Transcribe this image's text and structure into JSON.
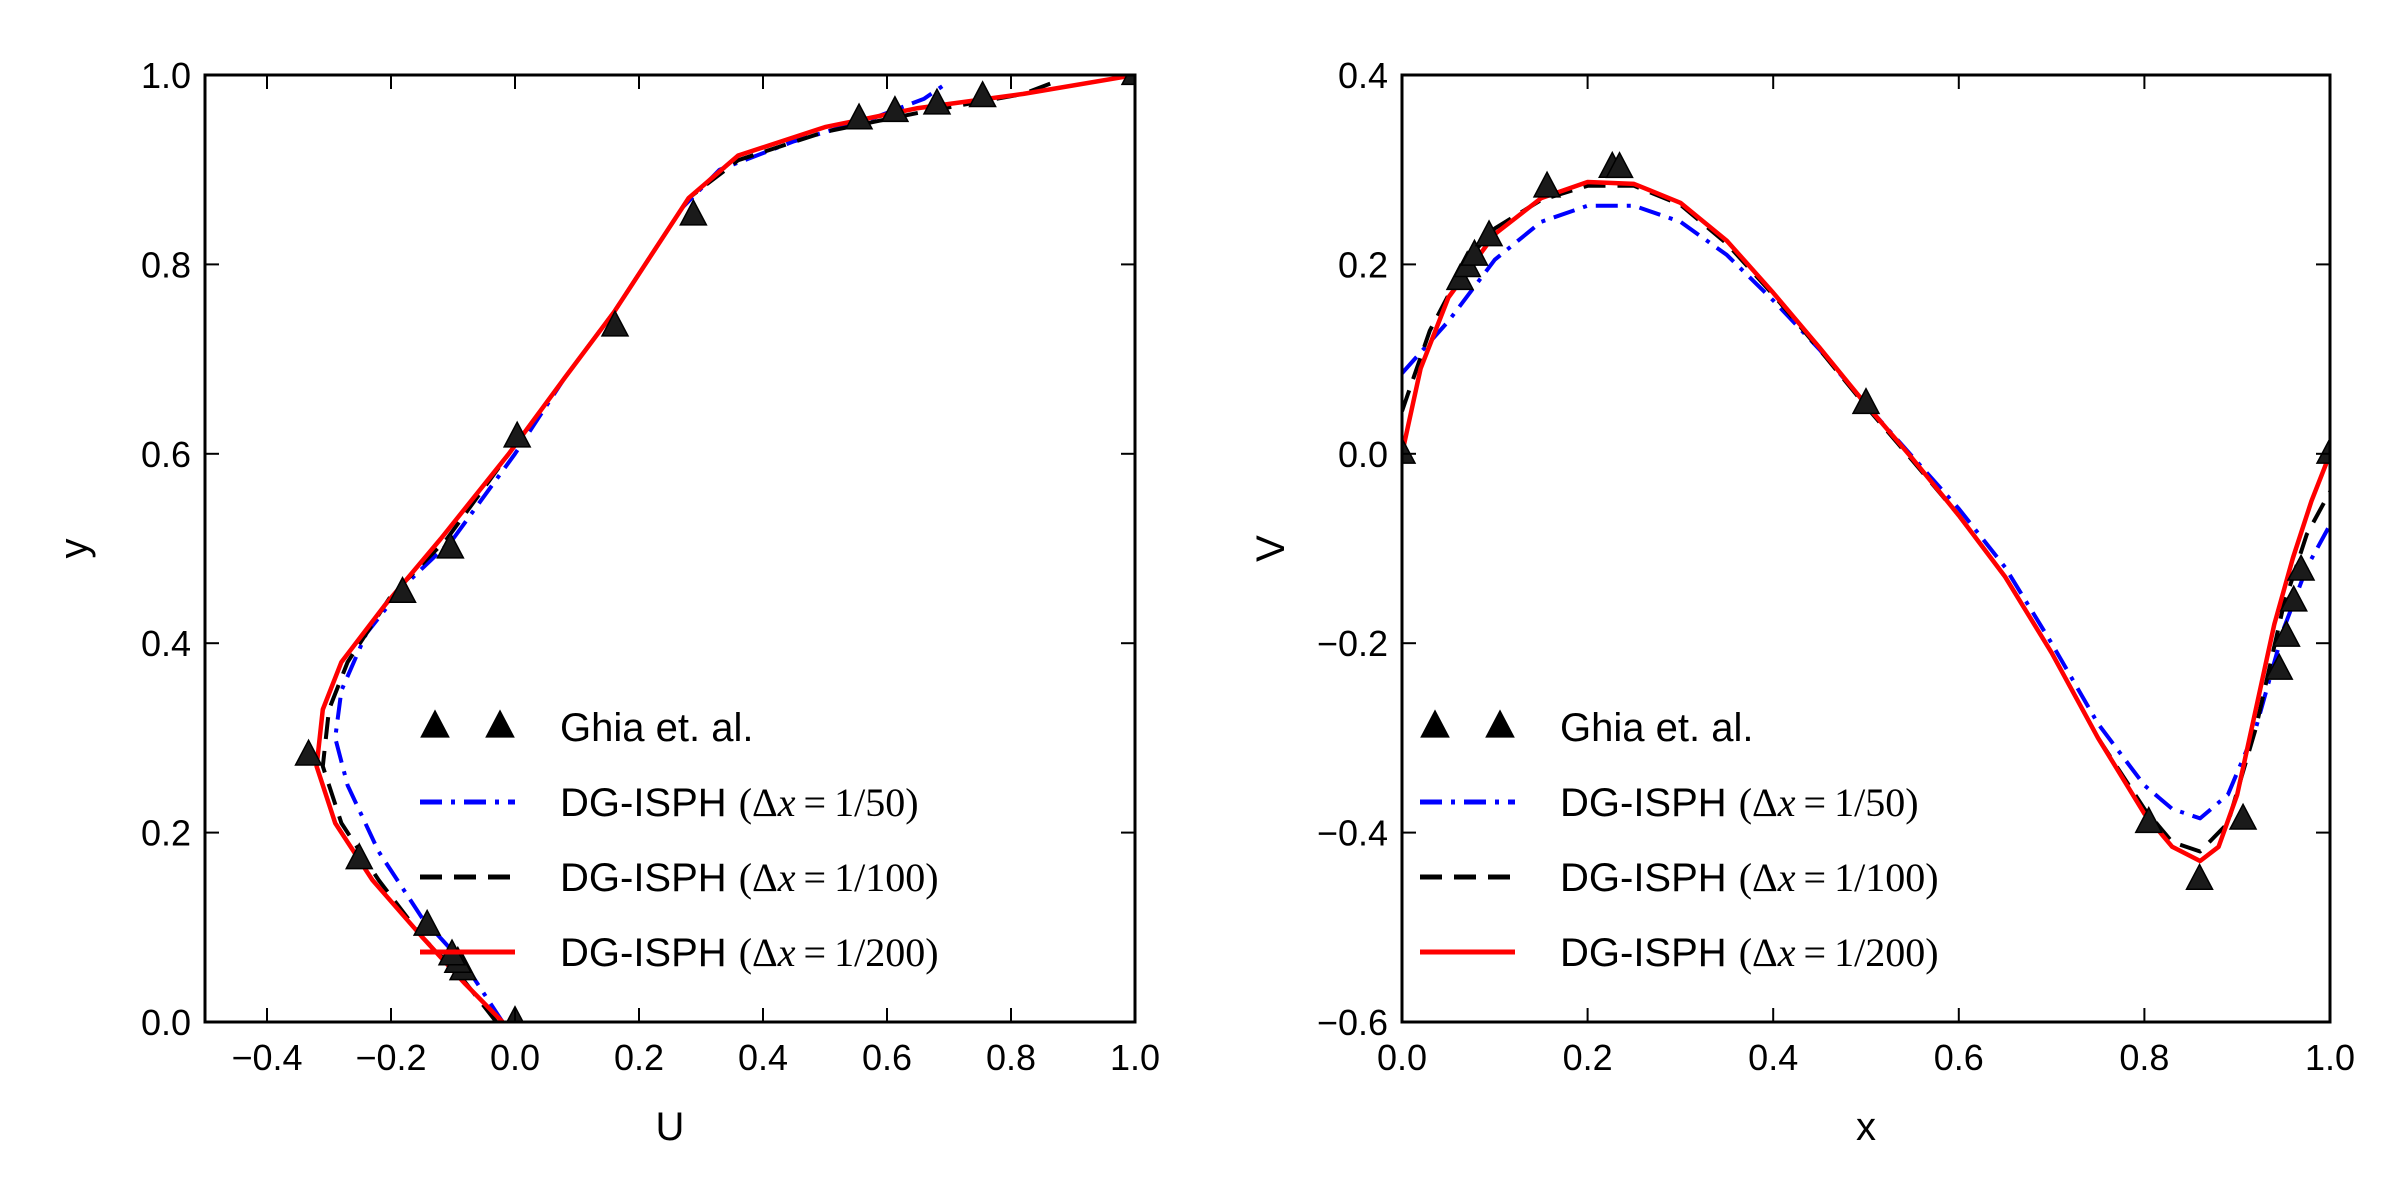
{
  "chart_data": [
    {
      "type": "line",
      "xlabel": "U",
      "ylabel": "y",
      "xlim": [
        -0.5,
        1.0
      ],
      "ylim": [
        0.0,
        1.0
      ],
      "xticks": [
        -0.4,
        -0.2,
        0.0,
        0.2,
        0.4,
        0.6,
        0.8,
        1.0
      ],
      "yticks": [
        0.0,
        0.2,
        0.4,
        0.6,
        0.8,
        1.0
      ],
      "xtick_labels": [
        "−0.4",
        "−0.2",
        "0.0",
        "0.2",
        "0.4",
        "0.6",
        "0.8",
        "1.0"
      ],
      "ytick_labels": [
        "0.0",
        "0.2",
        "0.4",
        "0.6",
        "0.8",
        "1.0"
      ],
      "grid": false,
      "legend_position": "lower-right",
      "series": [
        {
          "name": "Ghia et. al.",
          "style": "markers",
          "marker": "triangle",
          "color": "#000000",
          "points": [
            [
              0.0,
              0.0
            ],
            [
              -0.0838,
              0.0547
            ],
            [
              -0.0922,
              0.0625
            ],
            [
              -0.1016,
              0.0703
            ],
            [
              -0.1417,
              0.1016
            ],
            [
              -0.2512,
              0.1719
            ],
            [
              -0.333,
              0.2813
            ],
            [
              -0.1814,
              0.4531
            ],
            [
              -0.1042,
              0.5
            ],
            [
              0.0035,
              0.6172
            ],
            [
              0.1613,
              0.7344
            ],
            [
              0.2877,
              0.8516
            ],
            [
              0.5549,
              0.9531
            ],
            [
              0.6128,
              0.9609
            ],
            [
              0.6806,
              0.9688
            ],
            [
              0.7542,
              0.9766
            ],
            [
              1.0,
              1.0
            ]
          ]
        },
        {
          "name": "DG-ISPH",
          "dx_label": "1/50",
          "style": "dash-dot",
          "color": "#0000ff",
          "points": [
            [
              -0.02,
              0.0
            ],
            [
              -0.08,
              0.06
            ],
            [
              -0.15,
              0.11
            ],
            [
              -0.22,
              0.18
            ],
            [
              -0.27,
              0.25
            ],
            [
              -0.29,
              0.3
            ],
            [
              -0.28,
              0.35
            ],
            [
              -0.24,
              0.41
            ],
            [
              -0.18,
              0.46
            ],
            [
              -0.1,
              0.51
            ],
            [
              0.0,
              0.6
            ],
            [
              0.08,
              0.68
            ],
            [
              0.16,
              0.75
            ],
            [
              0.22,
              0.81
            ],
            [
              0.27,
              0.86
            ],
            [
              0.33,
              0.9
            ],
            [
              0.45,
              0.93
            ],
            [
              0.58,
              0.955
            ],
            [
              0.66,
              0.975
            ],
            [
              0.7,
              0.993
            ]
          ]
        },
        {
          "name": "DG-ISPH",
          "dx_label": "1/100",
          "style": "dashed",
          "color": "#000000",
          "points": [
            [
              -0.03,
              0.0
            ],
            [
              -0.09,
              0.05
            ],
            [
              -0.15,
              0.09
            ],
            [
              -0.22,
              0.15
            ],
            [
              -0.28,
              0.21
            ],
            [
              -0.31,
              0.27
            ],
            [
              -0.3,
              0.33
            ],
            [
              -0.27,
              0.38
            ],
            [
              -0.2,
              0.45
            ],
            [
              -0.11,
              0.51
            ],
            [
              -0.01,
              0.6
            ],
            [
              0.08,
              0.68
            ],
            [
              0.16,
              0.75
            ],
            [
              0.22,
              0.81
            ],
            [
              0.28,
              0.87
            ],
            [
              0.36,
              0.91
            ],
            [
              0.5,
              0.94
            ],
            [
              0.65,
              0.96
            ],
            [
              0.82,
              0.98
            ],
            [
              0.88,
              0.995
            ]
          ]
        },
        {
          "name": "DG-ISPH",
          "dx_label": "1/200",
          "style": "solid",
          "color": "#ff0000",
          "points": [
            [
              -0.02,
              0.0
            ],
            [
              -0.08,
              0.04
            ],
            [
              -0.15,
              0.09
            ],
            [
              -0.23,
              0.15
            ],
            [
              -0.29,
              0.21
            ],
            [
              -0.32,
              0.27
            ],
            [
              -0.31,
              0.33
            ],
            [
              -0.28,
              0.38
            ],
            [
              -0.21,
              0.44
            ],
            [
              -0.12,
              0.51
            ],
            [
              -0.01,
              0.6
            ],
            [
              0.08,
              0.68
            ],
            [
              0.16,
              0.75
            ],
            [
              0.22,
              0.81
            ],
            [
              0.28,
              0.87
            ],
            [
              0.36,
              0.915
            ],
            [
              0.5,
              0.945
            ],
            [
              0.65,
              0.965
            ],
            [
              0.82,
              0.98
            ],
            [
              1.0,
              1.0
            ]
          ]
        }
      ]
    },
    {
      "type": "line",
      "xlabel": "x",
      "ylabel": "V",
      "xlim": [
        0.0,
        1.0
      ],
      "ylim": [
        -0.6,
        0.4
      ],
      "xticks": [
        0.0,
        0.2,
        0.4,
        0.6,
        0.8,
        1.0
      ],
      "yticks": [
        -0.6,
        -0.4,
        -0.2,
        0.0,
        0.2,
        0.4
      ],
      "xtick_labels": [
        "0.0",
        "0.2",
        "0.4",
        "0.6",
        "0.8",
        "1.0"
      ],
      "ytick_labels": [
        "−0.6",
        "−0.4",
        "−0.2",
        "0.0",
        "0.2",
        "0.4"
      ],
      "grid": false,
      "legend_position": "lower-right",
      "series": [
        {
          "name": "Ghia et. al.",
          "style": "markers",
          "marker": "triangle",
          "color": "#000000",
          "points": [
            [
              0.0,
              0.0
            ],
            [
              0.0625,
              0.1836
            ],
            [
              0.0703,
              0.1971
            ],
            [
              0.0781,
              0.2092
            ],
            [
              0.0938,
              0.2297
            ],
            [
              0.1563,
              0.2812
            ],
            [
              0.2266,
              0.302
            ],
            [
              0.2344,
              0.3018
            ],
            [
              0.5,
              0.0526
            ],
            [
              0.8047,
              -0.3898
            ],
            [
              0.8594,
              -0.4499
            ],
            [
              0.9063,
              -0.3863
            ],
            [
              0.9453,
              -0.228
            ],
            [
              0.9531,
              -0.1932
            ],
            [
              0.9609,
              -0.156
            ],
            [
              0.9688,
              -0.1234
            ],
            [
              1.0,
              0.0
            ]
          ]
        },
        {
          "name": "DG-ISPH",
          "dx_label": "1/50",
          "style": "dash-dot",
          "color": "#0000ff",
          "points": [
            [
              0.0,
              0.085
            ],
            [
              0.05,
              0.14
            ],
            [
              0.1,
              0.205
            ],
            [
              0.15,
              0.245
            ],
            [
              0.2,
              0.262
            ],
            [
              0.25,
              0.262
            ],
            [
              0.3,
              0.245
            ],
            [
              0.35,
              0.21
            ],
            [
              0.4,
              0.162
            ],
            [
              0.45,
              0.11
            ],
            [
              0.5,
              0.052
            ],
            [
              0.55,
              -0.003
            ],
            [
              0.6,
              -0.058
            ],
            [
              0.65,
              -0.12
            ],
            [
              0.7,
              -0.2
            ],
            [
              0.75,
              -0.285
            ],
            [
              0.8,
              -0.35
            ],
            [
              0.83,
              -0.375
            ],
            [
              0.86,
              -0.385
            ],
            [
              0.89,
              -0.36
            ],
            [
              0.92,
              -0.29
            ],
            [
              0.95,
              -0.185
            ],
            [
              0.975,
              -0.12
            ],
            [
              1.0,
              -0.075
            ]
          ]
        },
        {
          "name": "DG-ISPH",
          "dx_label": "1/100",
          "style": "dashed",
          "color": "#000000",
          "points": [
            [
              0.0,
              0.045
            ],
            [
              0.03,
              0.13
            ],
            [
              0.07,
              0.205
            ],
            [
              0.1,
              0.238
            ],
            [
              0.15,
              0.268
            ],
            [
              0.2,
              0.283
            ],
            [
              0.25,
              0.283
            ],
            [
              0.3,
              0.263
            ],
            [
              0.35,
              0.222
            ],
            [
              0.4,
              0.168
            ],
            [
              0.45,
              0.11
            ],
            [
              0.5,
              0.05
            ],
            [
              0.55,
              -0.007
            ],
            [
              0.6,
              -0.065
            ],
            [
              0.65,
              -0.13
            ],
            [
              0.7,
              -0.21
            ],
            [
              0.75,
              -0.3
            ],
            [
              0.8,
              -0.375
            ],
            [
              0.83,
              -0.41
            ],
            [
              0.86,
              -0.42
            ],
            [
              0.89,
              -0.39
            ],
            [
              0.92,
              -0.29
            ],
            [
              0.95,
              -0.16
            ],
            [
              0.975,
              -0.085
            ],
            [
              1.0,
              -0.04
            ]
          ]
        },
        {
          "name": "DG-ISPH",
          "dx_label": "1/200",
          "style": "solid",
          "color": "#ff0000",
          "points": [
            [
              0.0,
              0.0
            ],
            [
              0.02,
              0.09
            ],
            [
              0.05,
              0.165
            ],
            [
              0.1,
              0.232
            ],
            [
              0.15,
              0.27
            ],
            [
              0.2,
              0.287
            ],
            [
              0.25,
              0.285
            ],
            [
              0.3,
              0.265
            ],
            [
              0.35,
              0.225
            ],
            [
              0.4,
              0.17
            ],
            [
              0.45,
              0.112
            ],
            [
              0.5,
              0.052
            ],
            [
              0.55,
              -0.005
            ],
            [
              0.6,
              -0.065
            ],
            [
              0.65,
              -0.13
            ],
            [
              0.7,
              -0.21
            ],
            [
              0.75,
              -0.3
            ],
            [
              0.8,
              -0.38
            ],
            [
              0.83,
              -0.415
            ],
            [
              0.86,
              -0.43
            ],
            [
              0.88,
              -0.415
            ],
            [
              0.9,
              -0.36
            ],
            [
              0.92,
              -0.27
            ],
            [
              0.94,
              -0.18
            ],
            [
              0.96,
              -0.11
            ],
            [
              0.98,
              -0.05
            ],
            [
              1.0,
              0.0
            ]
          ]
        }
      ]
    }
  ]
}
